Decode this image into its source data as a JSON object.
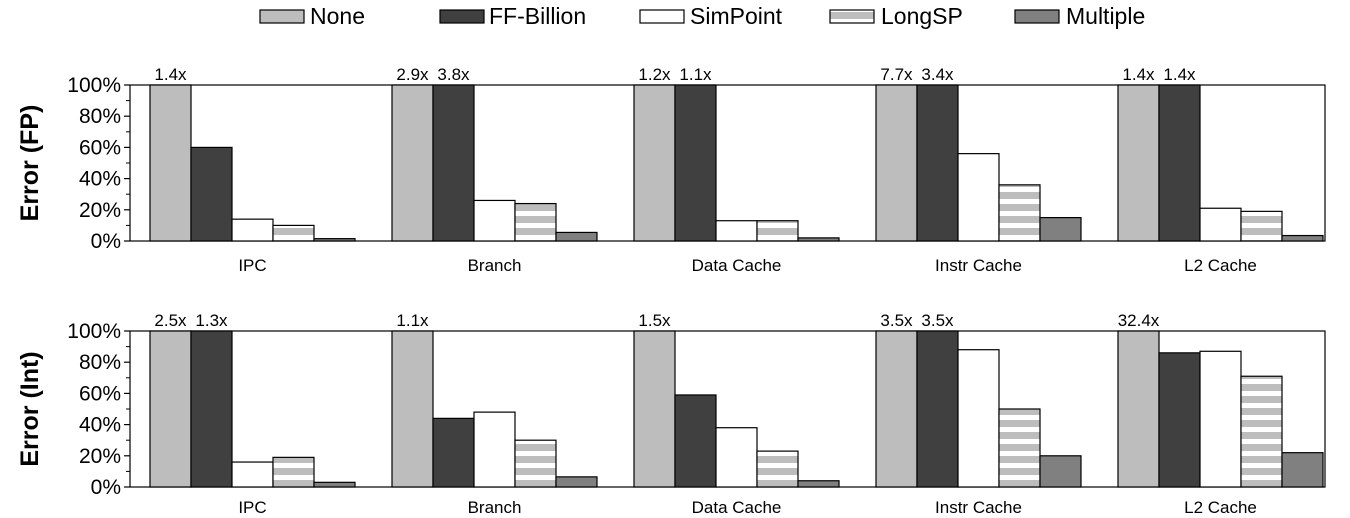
{
  "colors": {
    "None": "#bdbdbd",
    "FF-Billion": "#404040",
    "SimPoint": "#ffffff",
    "LongSP": "#bdbdbd",
    "Multiple": "#808080"
  },
  "legend": [
    {
      "label": "None",
      "pattern": "solid"
    },
    {
      "label": "FF-Billion",
      "pattern": "solid"
    },
    {
      "label": "SimPoint",
      "pattern": "solid"
    },
    {
      "label": "LongSP",
      "pattern": "stripes"
    },
    {
      "label": "Multiple",
      "pattern": "solid"
    }
  ],
  "chart_data": [
    {
      "type": "bar",
      "ylabel": "Error (FP)",
      "ylim": [
        0,
        100
      ],
      "y_ticks": [
        "0%",
        "20%",
        "40%",
        "60%",
        "80%",
        "100%"
      ],
      "categories": [
        "IPC",
        "Branch",
        "Data Cache",
        "Instr Cache",
        "L2 Cache"
      ],
      "series": [
        {
          "name": "None",
          "values": [
            100,
            100,
            100,
            100,
            100
          ]
        },
        {
          "name": "FF-Billion",
          "values": [
            60,
            100,
            100,
            100,
            100
          ]
        },
        {
          "name": "SimPoint",
          "values": [
            14,
            26,
            13,
            56,
            21
          ]
        },
        {
          "name": "LongSP",
          "values": [
            10,
            24,
            13,
            36,
            19
          ]
        },
        {
          "name": "Multiple",
          "values": [
            1.5,
            5.5,
            2,
            15,
            3.5
          ]
        }
      ],
      "annotations": [
        {
          "category": "IPC",
          "series": "None",
          "text": "1.4x"
        },
        {
          "category": "Branch",
          "series": "None",
          "text": "2.9x"
        },
        {
          "category": "Branch",
          "series": "FF-Billion",
          "text": "3.8x"
        },
        {
          "category": "Data Cache",
          "series": "None",
          "text": "1.2x"
        },
        {
          "category": "Data Cache",
          "series": "FF-Billion",
          "text": "1.1x"
        },
        {
          "category": "Instr Cache",
          "series": "None",
          "text": "7.7x"
        },
        {
          "category": "Instr Cache",
          "series": "FF-Billion",
          "text": "3.4x"
        },
        {
          "category": "L2 Cache",
          "series": "None",
          "text": "1.4x"
        },
        {
          "category": "L2 Cache",
          "series": "FF-Billion",
          "text": "1.4x"
        }
      ]
    },
    {
      "type": "bar",
      "ylabel": "Error (Int)",
      "ylim": [
        0,
        100
      ],
      "y_ticks": [
        "0%",
        "20%",
        "40%",
        "60%",
        "80%",
        "100%"
      ],
      "categories": [
        "IPC",
        "Branch",
        "Data Cache",
        "Instr Cache",
        "L2 Cache"
      ],
      "series": [
        {
          "name": "None",
          "values": [
            100,
            100,
            100,
            100,
            100
          ]
        },
        {
          "name": "FF-Billion",
          "values": [
            100,
            44,
            59,
            100,
            86
          ]
        },
        {
          "name": "SimPoint",
          "values": [
            16,
            48,
            38,
            88,
            87
          ]
        },
        {
          "name": "LongSP",
          "values": [
            19,
            30,
            23,
            50,
            71
          ]
        },
        {
          "name": "Multiple",
          "values": [
            3,
            6.5,
            4,
            20,
            22
          ]
        }
      ],
      "annotations": [
        {
          "category": "IPC",
          "series": "None",
          "text": "2.5x"
        },
        {
          "category": "IPC",
          "series": "FF-Billion",
          "text": "1.3x"
        },
        {
          "category": "Branch",
          "series": "None",
          "text": "1.1x"
        },
        {
          "category": "Data Cache",
          "series": "None",
          "text": "1.5x"
        },
        {
          "category": "Instr Cache",
          "series": "None",
          "text": "3.5x"
        },
        {
          "category": "Instr Cache",
          "series": "FF-Billion",
          "text": "3.5x"
        },
        {
          "category": "L2 Cache",
          "series": "None",
          "text": "32.4x"
        }
      ]
    }
  ]
}
